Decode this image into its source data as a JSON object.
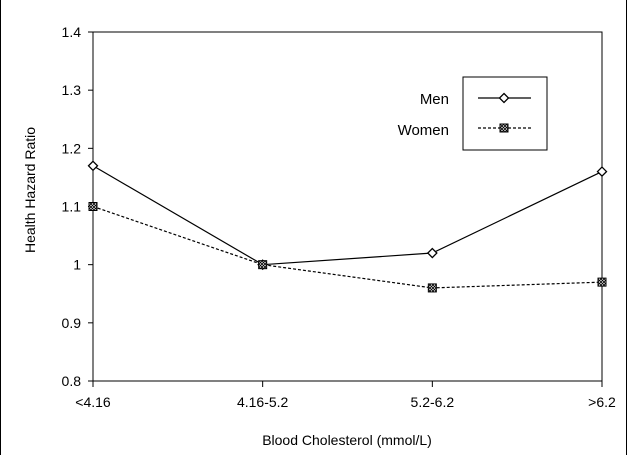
{
  "chart_data": {
    "type": "line",
    "title": "",
    "xlabel": "Blood Cholesterol (mmol/L)",
    "ylabel": "Health Hazard Ratio",
    "categories": [
      "<4.16",
      "4.16-5.2",
      "5.2-6.2",
      ">6.2"
    ],
    "ylim": [
      0.8,
      1.4
    ],
    "yticks": [
      "0.8",
      "0.9",
      "1",
      "1.1",
      "1.2",
      "1.3",
      "1.4"
    ],
    "grid": false,
    "legend_position": "top-right",
    "series": [
      {
        "name": "Men",
        "values": [
          1.17,
          1.0,
          1.02,
          1.16
        ],
        "line_style": "solid",
        "marker": "diamond",
        "color": "#000000"
      },
      {
        "name": "Women",
        "values": [
          1.1,
          1.0,
          0.96,
          0.97
        ],
        "line_style": "dashed",
        "marker": "hatched-square",
        "color": "#000000"
      }
    ]
  }
}
